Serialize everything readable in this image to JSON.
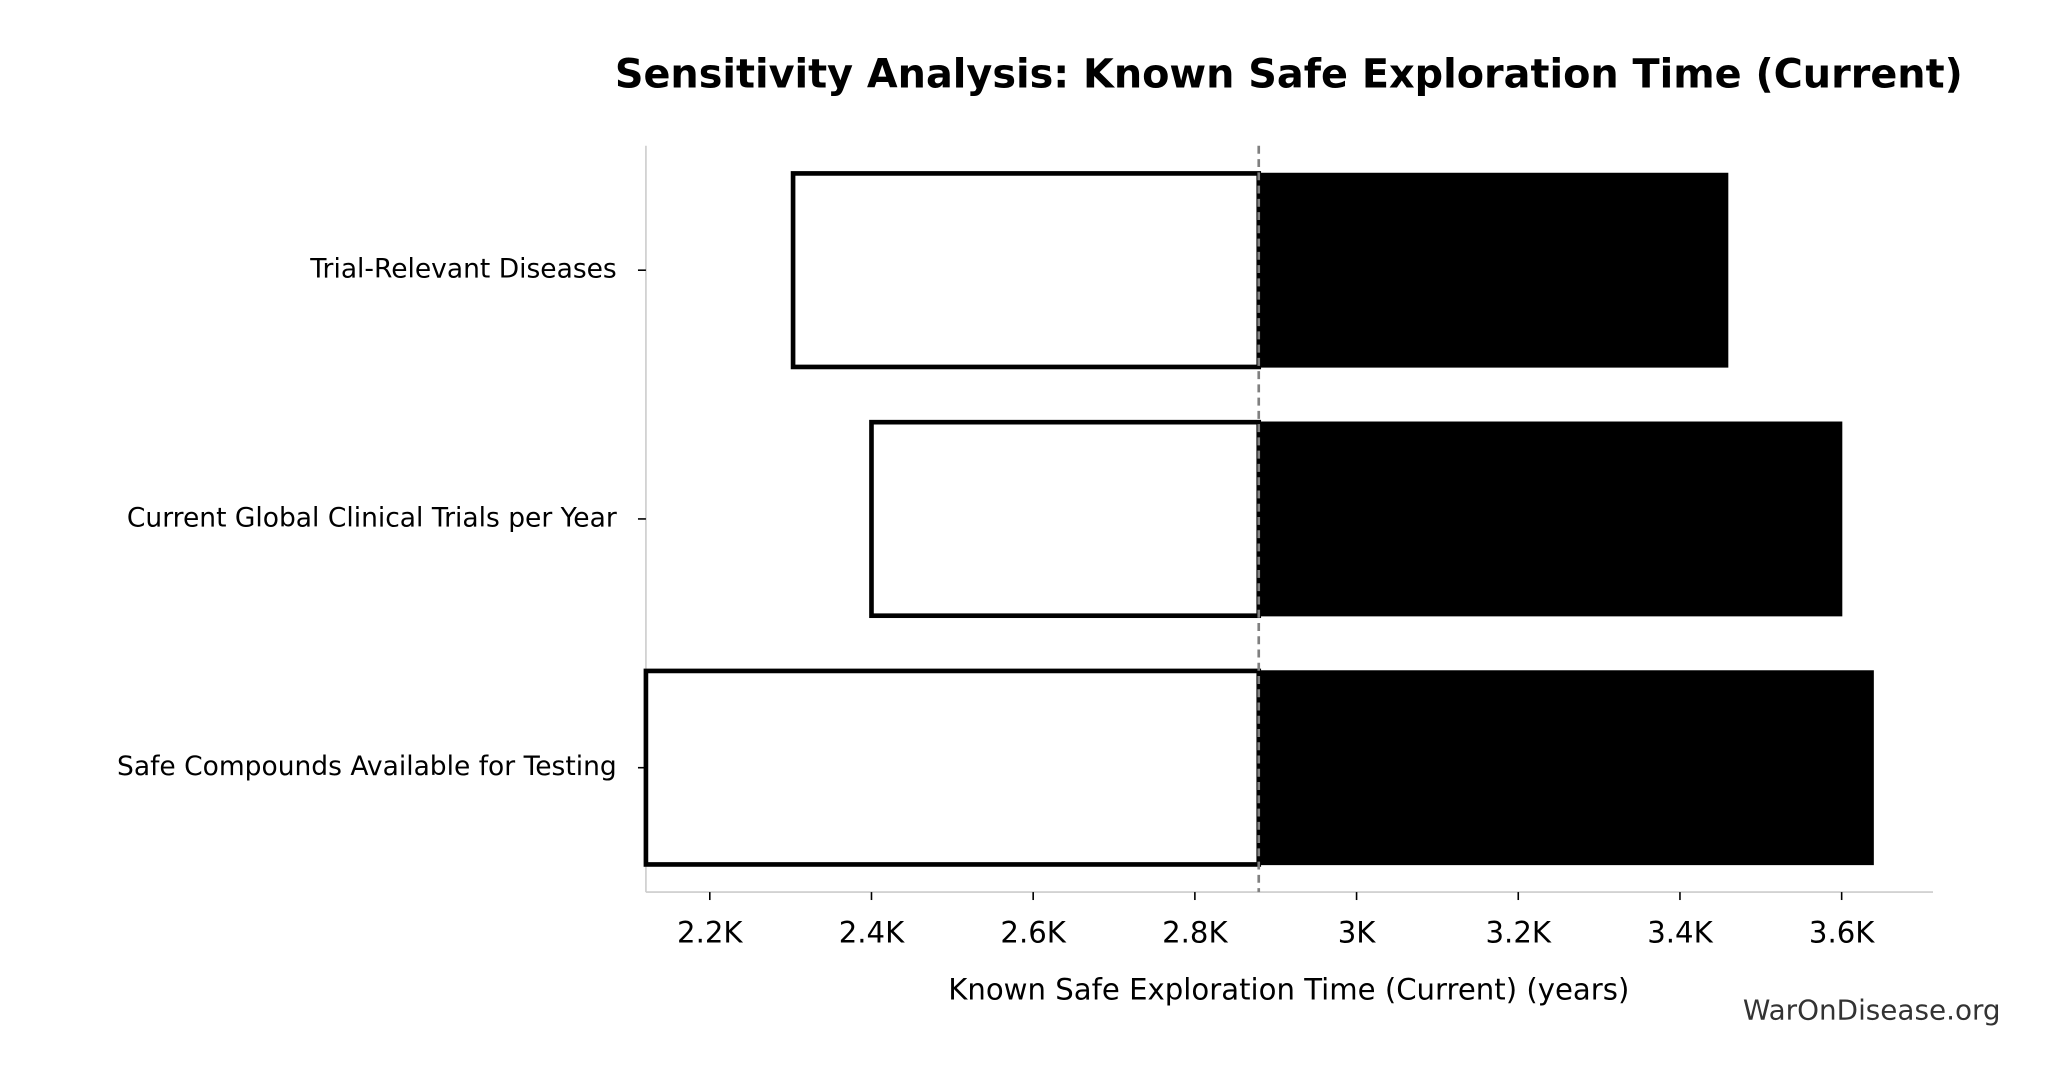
{
  "chart_data": {
    "type": "tornado",
    "title": "Sensitivity Analysis: Known Safe Exploration Time (Current)",
    "x_label": "Known Safe Exploration Time (Current) (years)",
    "watermark": "WarOnDisease.org",
    "categories": [
      "Trial-Relevant Diseases",
      "Current Global Clinical Trials per Year",
      "Safe Compounds Available for Testing"
    ],
    "baseline": 2879,
    "low_values": [
      2303,
      2400,
      2121
    ],
    "high_values": [
      3459,
      3600,
      3639
    ],
    "low_color": "#ffffff",
    "high_color": "#000000",
    "xlim": [
      2121,
      3713
    ],
    "xticks": [
      {
        "value": 2200,
        "label": "2.2K"
      },
      {
        "value": 2400,
        "label": "2.4K"
      },
      {
        "value": 2600,
        "label": "2.6K"
      },
      {
        "value": 2800,
        "label": "2.8K"
      },
      {
        "value": 3000,
        "label": "3K"
      },
      {
        "value": 3200,
        "label": "3.2K"
      },
      {
        "value": 3400,
        "label": "3.4K"
      },
      {
        "value": 3600,
        "label": "3.6K"
      }
    ]
  }
}
